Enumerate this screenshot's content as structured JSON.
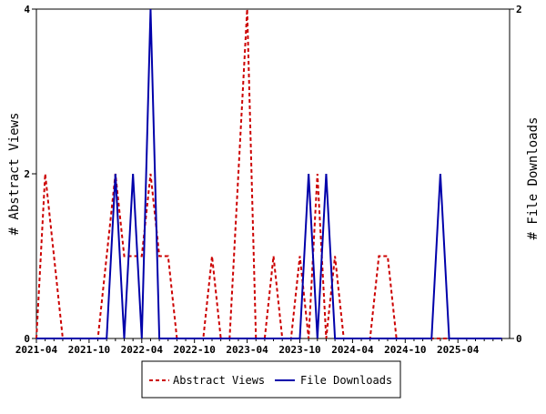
{
  "chart_data": {
    "type": "line",
    "title": "",
    "xlabel": "",
    "ylabel": "# Abstract Views",
    "y2label": "# File Downloads",
    "ylim": [
      0,
      4
    ],
    "y2lim": [
      0,
      2
    ],
    "yticks": [
      0,
      2,
      4
    ],
    "y2ticks": [
      0,
      2
    ],
    "grid": false,
    "legend_position": "bottom-center",
    "x_tick_labels": [
      "2021-04",
      "2021-10",
      "2022-04",
      "2022-10",
      "2023-04",
      "2023-10",
      "2024-04",
      "2024-10",
      "2025-04"
    ],
    "x": [
      "2021-04",
      "2021-05",
      "2021-06",
      "2021-07",
      "2021-08",
      "2021-09",
      "2021-10",
      "2021-11",
      "2021-12",
      "2022-01",
      "2022-02",
      "2022-03",
      "2022-04",
      "2022-05",
      "2022-06",
      "2022-07",
      "2022-08",
      "2022-09",
      "2022-10",
      "2022-11",
      "2022-12",
      "2023-01",
      "2023-02",
      "2023-03",
      "2023-04",
      "2023-05",
      "2023-06",
      "2023-07",
      "2023-08",
      "2023-09",
      "2023-10",
      "2023-11",
      "2023-12",
      "2024-01",
      "2024-02",
      "2024-03",
      "2024-04",
      "2024-05",
      "2024-06",
      "2024-07",
      "2024-08",
      "2024-09",
      "2024-10",
      "2024-11",
      "2024-12",
      "2025-01",
      "2025-02",
      "2025-03",
      "2025-04",
      "2025-05",
      "2025-06",
      "2025-07",
      "2025-08",
      "2025-09"
    ],
    "series": [
      {
        "name": "Abstract Views",
        "axis": "left",
        "color": "#cc0000",
        "dash": true,
        "values": [
          0,
          2,
          1,
          0,
          0,
          0,
          0,
          0,
          1,
          2,
          1,
          1,
          1,
          2,
          1,
          1,
          0,
          0,
          0,
          0,
          1,
          0,
          0,
          2,
          4,
          0,
          0,
          1,
          0,
          0,
          1,
          0,
          2,
          0,
          1,
          0,
          0,
          0,
          0,
          1,
          1,
          0,
          0,
          0,
          0,
          0,
          0,
          0,
          0,
          0,
          0,
          0,
          0,
          0
        ]
      },
      {
        "name": "File Downloads",
        "axis": "right",
        "color": "#0000aa",
        "dash": false,
        "values": [
          0,
          0,
          0,
          0,
          0,
          0,
          0,
          0,
          0,
          1,
          0,
          1,
          0,
          2,
          0,
          0,
          0,
          0,
          0,
          0,
          0,
          0,
          0,
          0,
          0,
          0,
          0,
          0,
          0,
          0,
          0,
          1,
          0,
          1,
          0,
          0,
          0,
          0,
          0,
          0,
          0,
          0,
          0,
          0,
          0,
          0,
          1,
          0,
          0,
          0,
          0,
          0,
          0,
          0
        ]
      }
    ]
  }
}
